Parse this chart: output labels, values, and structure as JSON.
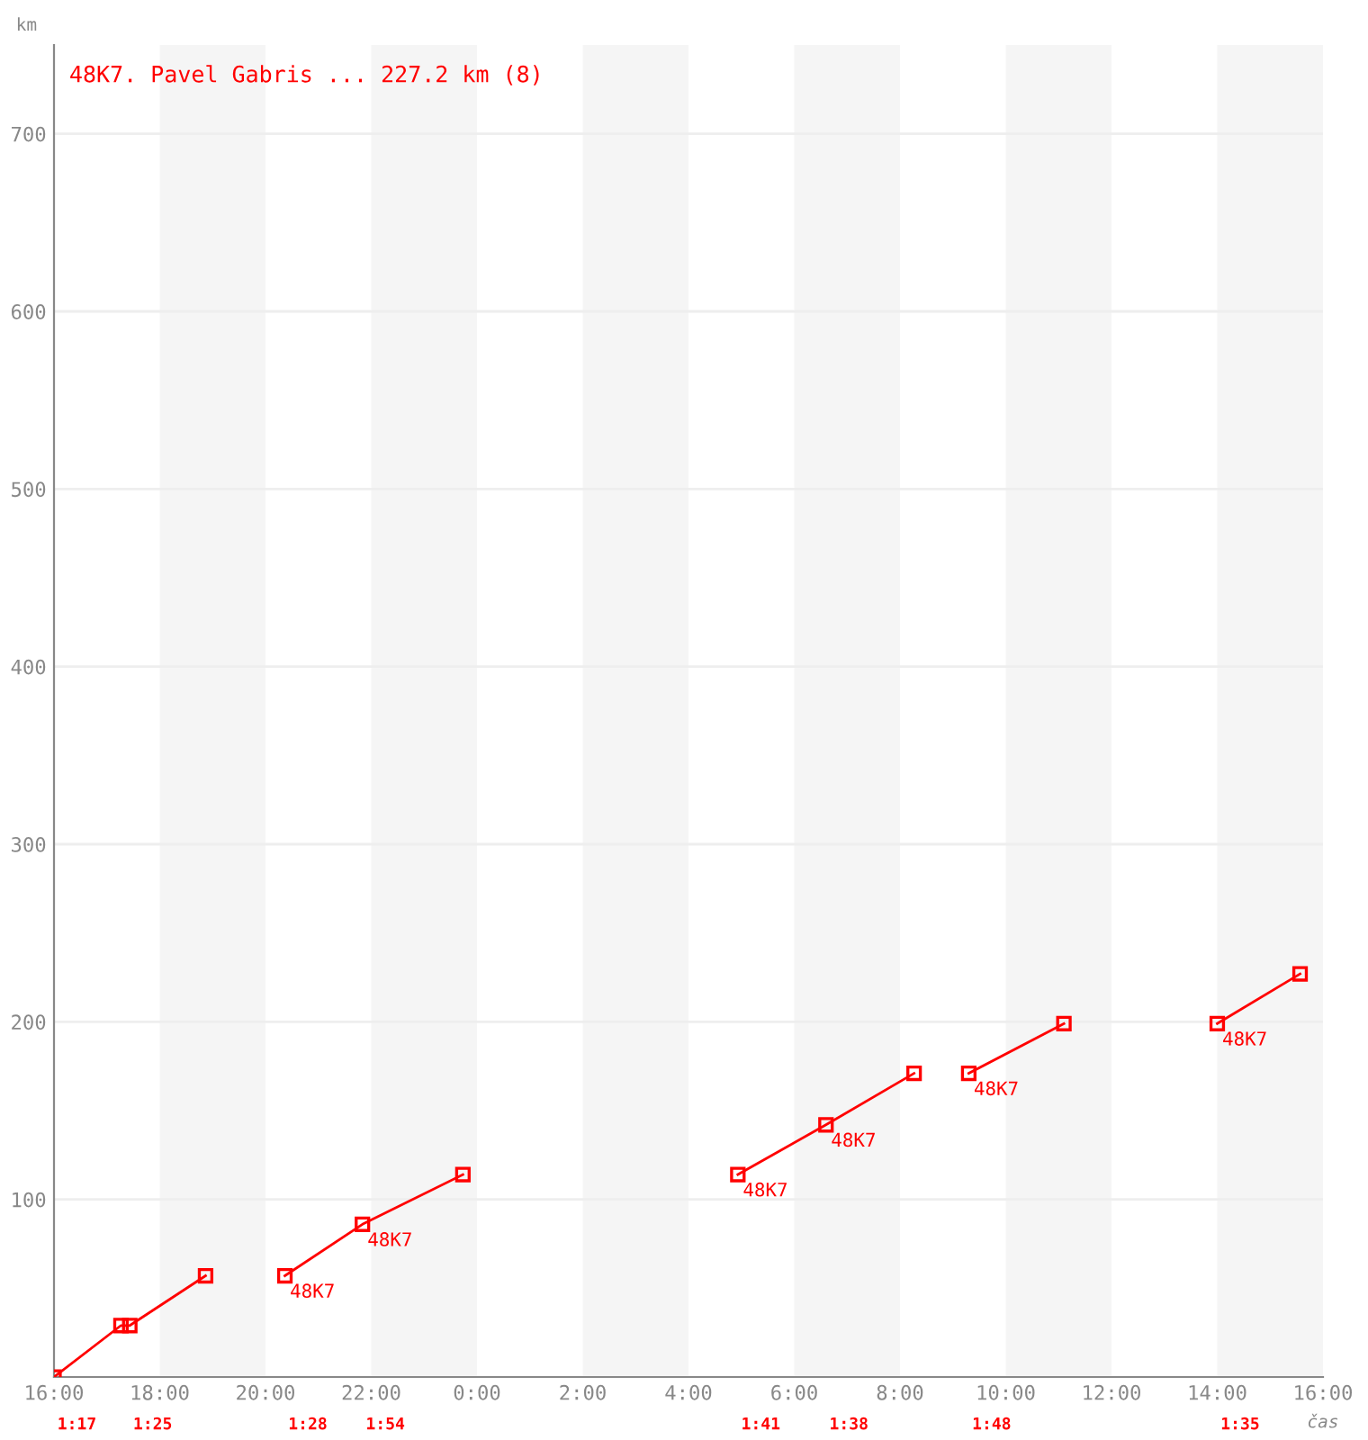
{
  "chart_data": {
    "type": "line",
    "title": "48K7. Pavel Gabris ... 227.2 km (8)",
    "ylabel": "km",
    "xlabel": "čas",
    "series": [
      {
        "color": "#ff0000",
        "x": [
          "2000-01-01T16:00",
          "2000-01-01T17:16",
          "2000-01-01T17:26",
          "2000-01-01T18:52"
        ],
        "values": [
          0,
          29,
          29,
          57
        ]
      },
      {
        "color": "#ff0000",
        "x": [
          "2000-01-01T20:22",
          "2000-01-01T21:50",
          "2000-01-01T23:44"
        ],
        "values": [
          57,
          86,
          114
        ]
      },
      {
        "color": "#ff0000",
        "x": [
          "2000-01-02T04:56",
          "2000-01-02T06:36",
          "2000-01-02T08:16"
        ],
        "values": [
          114,
          142,
          171
        ]
      },
      {
        "color": "#ff0000",
        "x": [
          "2000-01-02T09:18",
          "2000-01-02T11:06"
        ],
        "values": [
          171,
          199
        ]
      },
      {
        "color": "#ff0000",
        "x": [
          "2000-01-02T14:00",
          "2000-01-02T15:34"
        ],
        "values": [
          199,
          227
        ]
      }
    ],
    "marker": "square",
    "line_style": "solid",
    "grid": "y",
    "xlim": [
      "2000-01-01T16:00",
      "2000-01-02T16:00"
    ],
    "ylim": [
      0,
      750
    ],
    "xticks": [
      {
        "value": "2000-01-01T16:00",
        "label": "16:00"
      },
      {
        "value": "2000-01-01T18:00",
        "label": "18:00"
      },
      {
        "value": "2000-01-01T20:00",
        "label": "20:00"
      },
      {
        "value": "2000-01-01T22:00",
        "label": "22:00"
      },
      {
        "value": "2000-01-02T00:00",
        "label": "0:00"
      },
      {
        "value": "2000-01-02T02:00",
        "label": "2:00"
      },
      {
        "value": "2000-01-02T04:00",
        "label": "4:00"
      },
      {
        "value": "2000-01-02T06:00",
        "label": "6:00"
      },
      {
        "value": "2000-01-02T08:00",
        "label": "8:00"
      },
      {
        "value": "2000-01-02T10:00",
        "label": "10:00"
      },
      {
        "value": "2000-01-02T12:00",
        "label": "12:00"
      },
      {
        "value": "2000-01-02T14:00",
        "label": "14:00"
      },
      {
        "value": "2000-01-02T16:00",
        "label": "16:00"
      }
    ],
    "yticks": [
      100,
      200,
      300,
      400,
      500,
      600,
      700
    ],
    "bands": [
      {
        "axis": "x",
        "from": "2000-01-01T18:00",
        "to": "2000-01-01T20:00",
        "color": "#f5f5f5"
      },
      {
        "axis": "x",
        "from": "2000-01-01T22:00",
        "to": "2000-01-02T00:00",
        "color": "#f5f5f5"
      },
      {
        "axis": "x",
        "from": "2000-01-02T02:00",
        "to": "2000-01-02T04:00",
        "color": "#f5f5f5"
      },
      {
        "axis": "x",
        "from": "2000-01-02T06:00",
        "to": "2000-01-02T08:00",
        "color": "#f5f5f5"
      },
      {
        "axis": "x",
        "from": "2000-01-02T10:00",
        "to": "2000-01-02T12:00",
        "color": "#f5f5f5"
      },
      {
        "axis": "x",
        "from": "2000-01-02T14:00",
        "to": "2000-01-02T16:00",
        "color": "#f5f5f5"
      }
    ],
    "annotations": [
      {
        "text": "48K7",
        "x": "2000-01-01T20:22",
        "y": 57
      },
      {
        "text": "48K7",
        "x": "2000-01-01T21:50",
        "y": 86
      },
      {
        "text": "48K7",
        "x": "2000-01-02T04:56",
        "y": 114
      },
      {
        "text": "48K7",
        "x": "2000-01-02T06:36",
        "y": 142
      },
      {
        "text": "48K7",
        "x": "2000-01-02T09:18",
        "y": 171
      },
      {
        "text": "48K7",
        "x": "2000-01-02T14:00",
        "y": 199
      },
      "1:17",
      "1:25",
      "1:28",
      "1:54",
      "1:41",
      "1:38",
      "1:48",
      "1:35"
    ]
  }
}
